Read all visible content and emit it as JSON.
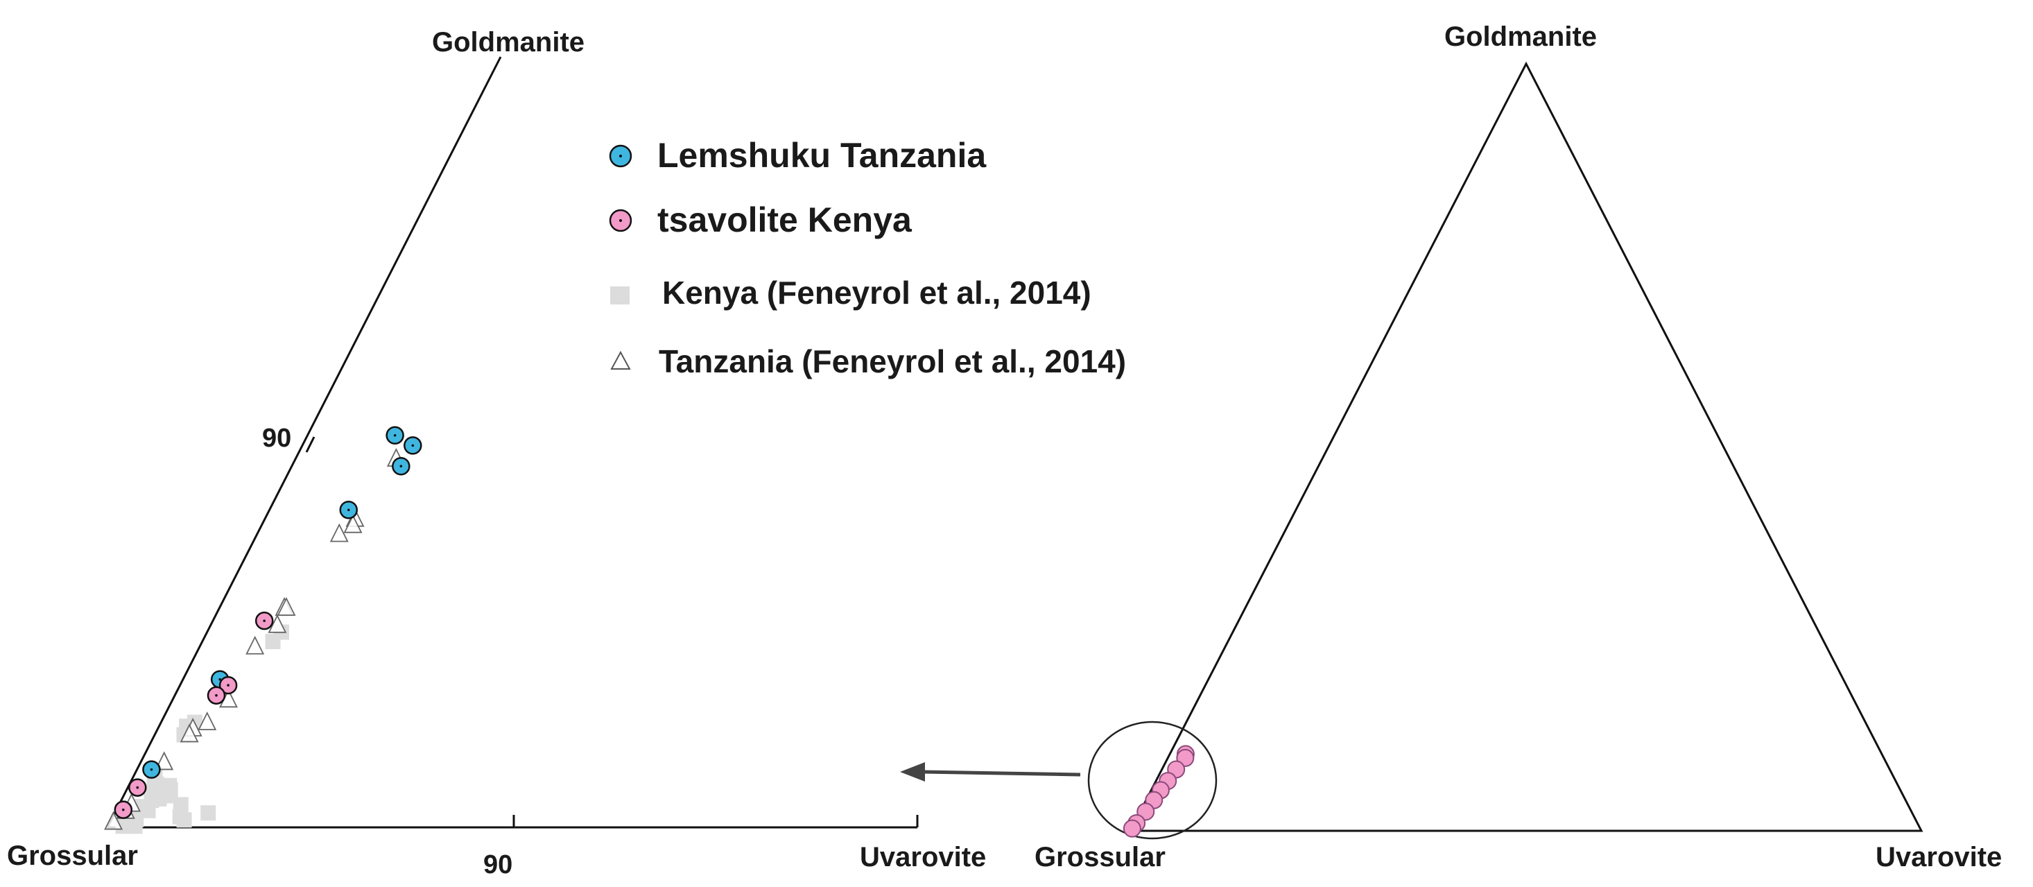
{
  "chart_data": [
    {
      "type": "scatter",
      "subtype": "ternary-zoom",
      "vertices": {
        "top": "Goldmanite",
        "left": "Grossular",
        "right": "Uvarovite"
      },
      "axis_ticks": {
        "goldmanite_tick": "90",
        "uvarovite_tick": "90"
      },
      "grid": false,
      "legend_placement": "top-right",
      "legend": [
        {
          "label": "Lemshuku Tanzania",
          "marker": "circle",
          "color": "#3fb6e0"
        },
        {
          "label": "tsavolite Kenya",
          "marker": "circle",
          "color": "#f29ac8"
        },
        {
          "label": "Kenya (Feneyrol et al., 2014)",
          "marker": "square",
          "color": "#dcdcdc"
        },
        {
          "label": "Tanzania (Feneyrol et al., 2014)",
          "marker": "triangle",
          "color": "#ffffff"
        }
      ],
      "series": [
        {
          "name": "Lemshuku Tanzania",
          "marker": "circle",
          "color": "#3fb6e0",
          "points_t_u": [
            [
              10.04,
              1.97
            ],
            [
              9.78,
              2.54
            ],
            [
              9.25,
              2.52
            ],
            [
              8.13,
              1.8
            ],
            [
              3.79,
              0.84
            ],
            [
              1.48,
              0.33
            ]
          ]
        },
        {
          "name": "tsavolite Kenya",
          "marker": "circle",
          "color": "#f29ac8",
          "points_t_u": [
            [
              5.29,
              1.17
            ],
            [
              3.64,
              1.12
            ],
            [
              3.38,
              0.96
            ],
            [
              1.02,
              0.22
            ],
            [
              0.45,
              0.16
            ]
          ]
        },
        {
          "name": "Kenya (Feneyrol et al., 2014)",
          "marker": "square",
          "color": "#dcdcdc",
          "points_t_u": [
            [
              5.0,
              1.74
            ],
            [
              4.76,
              1.65
            ],
            [
              2.69,
              0.78
            ],
            [
              2.59,
              0.63
            ],
            [
              2.37,
              0.68
            ],
            [
              1.33,
              0.49
            ],
            [
              1.18,
              0.55
            ],
            [
              1.11,
              0.64
            ],
            [
              1.07,
              0.98
            ],
            [
              0.96,
              1.06
            ],
            [
              0.83,
              0.71
            ],
            [
              0.81,
              1.02
            ],
            [
              0.73,
              0.9
            ],
            [
              0.69,
              0.73
            ],
            [
              0.58,
              1.51
            ],
            [
              0.53,
              0.59
            ],
            [
              0.43,
              0.78
            ],
            [
              0.37,
              2.29
            ],
            [
              0.36,
              0.4
            ],
            [
              0.27,
              1.65
            ],
            [
              0.2,
              0.6
            ],
            [
              0.19,
              1.79
            ],
            [
              0.08,
              0.35
            ],
            [
              0.03,
              0.66
            ],
            [
              0.03,
              0.37
            ]
          ]
        },
        {
          "name": "Tanzania (Feneyrol et al., 2014)",
          "marker": "triangle",
          "color": "#ffffff",
          "points_t_u": [
            [
              9.45,
              2.3
            ],
            [
              7.91,
              2.07
            ],
            [
              7.75,
              2.1
            ],
            [
              7.52,
              1.88
            ],
            [
              5.63,
              1.49
            ],
            [
              5.63,
              1.54
            ],
            [
              5.19,
              1.54
            ],
            [
              4.64,
              1.27
            ],
            [
              3.28,
              1.31
            ],
            [
              2.7,
              1.08
            ],
            [
              2.54,
              0.81
            ],
            [
              2.39,
              0.8
            ],
            [
              1.68,
              0.54
            ],
            [
              0.61,
              0.28
            ],
            [
              0.43,
              0.23
            ],
            [
              0.15,
              0.07
            ]
          ]
        }
      ]
    },
    {
      "type": "scatter",
      "subtype": "ternary-full",
      "vertices": {
        "top": "Goldmanite",
        "left": "Grossular",
        "right": "Uvarovite"
      },
      "grid": false,
      "points_t_u": [
        [
          10.0,
          2.0
        ],
        [
          9.5,
          2.2
        ],
        [
          8.0,
          1.8
        ],
        [
          6.5,
          1.5
        ],
        [
          5.3,
          1.2
        ],
        [
          4.0,
          1.0
        ],
        [
          2.5,
          0.7
        ],
        [
          1.0,
          0.3
        ],
        [
          0.3,
          0.1
        ]
      ]
    }
  ]
}
